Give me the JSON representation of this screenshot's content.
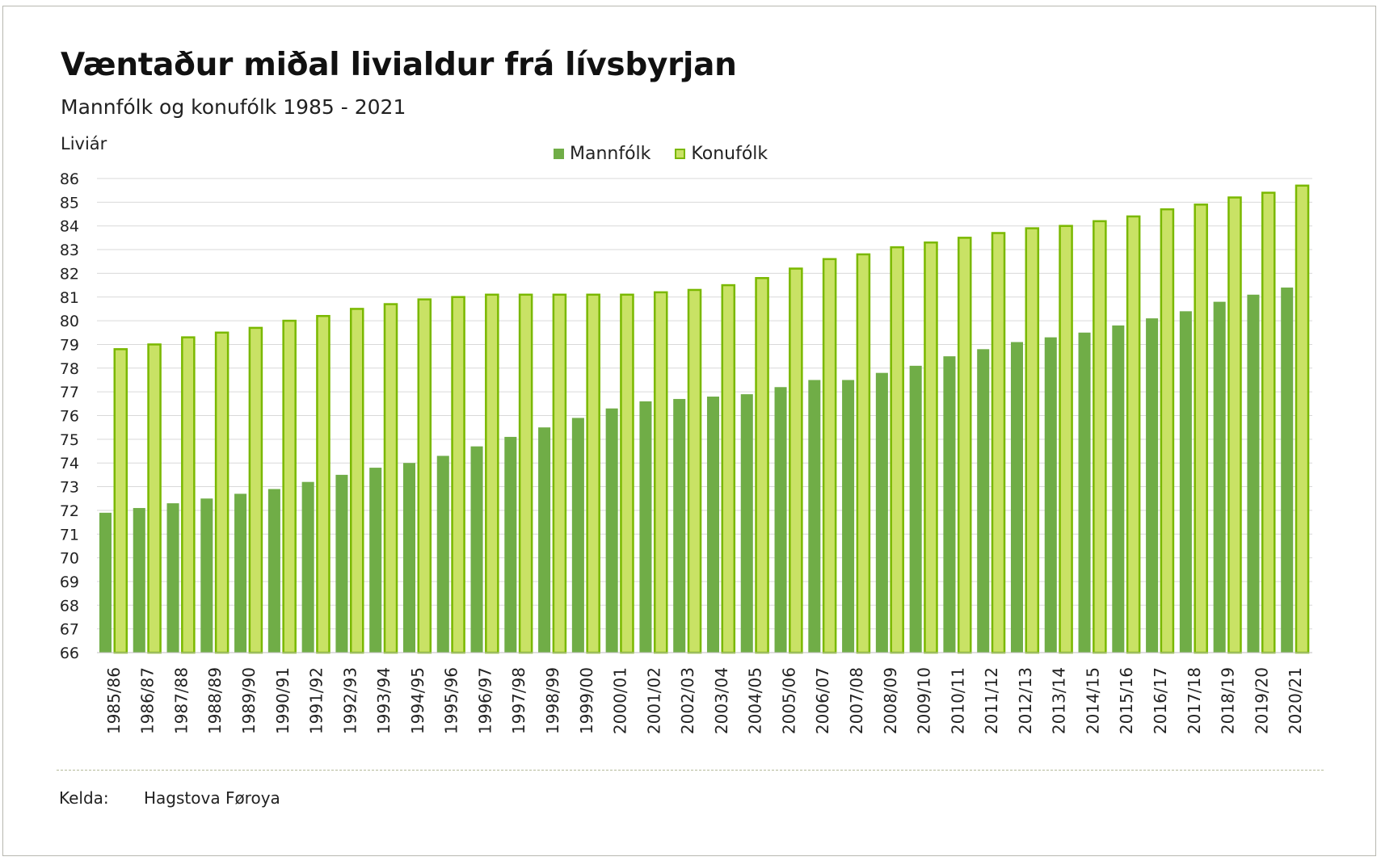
{
  "chart_data": {
    "type": "bar",
    "title": "Væntaður miðal livialdur frá lívsbyrjan",
    "subtitle": "Mannfólk og konufólk 1985 - 2021",
    "ylabel": "Liviár",
    "xlabel": "",
    "ylim": [
      66,
      86
    ],
    "yticks": [
      66,
      67,
      68,
      69,
      70,
      71,
      72,
      73,
      74,
      75,
      76,
      77,
      78,
      79,
      80,
      81,
      82,
      83,
      84,
      85,
      86
    ],
    "grid": true,
    "legend_position": "top-center",
    "categories": [
      "1985/86",
      "1986/87",
      "1987/88",
      "1988/89",
      "1989/90",
      "1990/91",
      "1991/92",
      "1992/93",
      "1993/94",
      "1994/95",
      "1995/96",
      "1996/97",
      "1997/98",
      "1998/99",
      "1999/00",
      "2000/01",
      "2001/02",
      "2002/03",
      "2003/04",
      "2004/05",
      "2005/06",
      "2006/07",
      "2007/08",
      "2008/09",
      "2009/10",
      "2010/11",
      "2011/12",
      "2012/13",
      "2013/14",
      "2014/15",
      "2015/16",
      "2016/17",
      "2017/18",
      "2018/19",
      "2019/20",
      "2020/21"
    ],
    "series": [
      {
        "name": "Mannfólk",
        "color": "#70ad47",
        "values": [
          71.9,
          72.1,
          72.3,
          72.5,
          72.7,
          72.9,
          73.2,
          73.5,
          73.8,
          74.0,
          74.3,
          74.7,
          75.1,
          75.5,
          75.9,
          76.3,
          76.6,
          76.7,
          76.8,
          76.9,
          77.2,
          77.5,
          77.5,
          77.8,
          78.1,
          78.5,
          78.8,
          79.1,
          79.3,
          79.5,
          79.8,
          80.1,
          80.4,
          80.8,
          81.1,
          81.4
        ]
      },
      {
        "name": "Konufólk",
        "color": "#c9e265",
        "border": "#7ab800",
        "values": [
          78.8,
          79.0,
          79.3,
          79.5,
          79.7,
          80.0,
          80.2,
          80.5,
          80.7,
          80.9,
          81.0,
          81.1,
          81.1,
          81.1,
          81.1,
          81.1,
          81.2,
          81.3,
          81.5,
          81.8,
          82.2,
          82.6,
          82.8,
          83.1,
          83.3,
          83.5,
          83.7,
          83.9,
          84.0,
          84.2,
          84.4,
          84.7,
          84.9,
          85.2,
          85.4,
          85.7
        ]
      }
    ]
  },
  "footer": {
    "source_label": "Kelda:",
    "source_value": "Hagstova Føroya"
  }
}
